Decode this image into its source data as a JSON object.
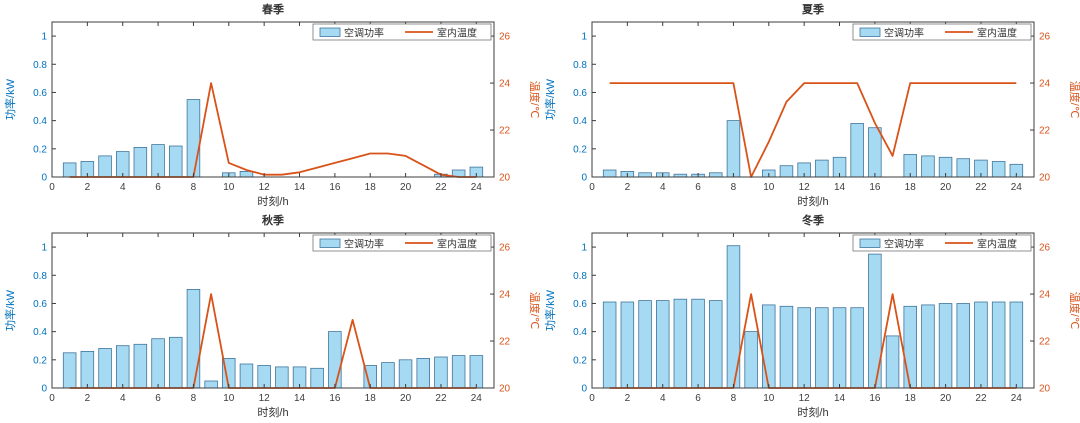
{
  "figure": {
    "title": "",
    "rows": 2,
    "cols": 2
  },
  "palette": {
    "bar_face": "#a6d9f2",
    "bar_edge": "#40759c",
    "line": "#d95319",
    "left_axis": "#0072bd",
    "right_axis": "#d95319",
    "axis_box": "#3c3c3c",
    "tick_text": "#3c3c3c",
    "title_text": "#333333",
    "legend_border": "#777777",
    "background": "#ffffff"
  },
  "chart_data": [
    {
      "type": "combo",
      "title": "春季",
      "xlabel": "时刻/h",
      "ylabel_left": "功率/kW",
      "ylabel_right": "温度/℃",
      "legend_position": "top-right-inside",
      "grid": false,
      "xlim": [
        0,
        25
      ],
      "xticks": [
        0,
        2,
        4,
        6,
        8,
        10,
        12,
        14,
        16,
        18,
        20,
        22,
        24
      ],
      "ylim_left": [
        0,
        1.1
      ],
      "yticks_left": [
        0,
        0.2,
        0.4,
        0.6,
        0.8,
        1
      ],
      "ylim_right": [
        20,
        26.6
      ],
      "yticks_right": [
        20,
        22,
        24,
        26
      ],
      "x": [
        1,
        2,
        3,
        4,
        5,
        6,
        7,
        8,
        9,
        10,
        11,
        12,
        13,
        14,
        15,
        16,
        17,
        18,
        19,
        20,
        21,
        22,
        23,
        24
      ],
      "series": [
        {
          "name": "空调功率",
          "type": "bar",
          "values": [
            0.1,
            0.11,
            0.15,
            0.18,
            0.21,
            0.23,
            0.22,
            0.55,
            0,
            0.03,
            0.04,
            0,
            0,
            0,
            0,
            0,
            0,
            0,
            0,
            0,
            0,
            0.02,
            0.05,
            0.07
          ]
        },
        {
          "name": "室内温度",
          "type": "line",
          "values": [
            20,
            20,
            20,
            20,
            20,
            20,
            20,
            20,
            24,
            20.6,
            20.3,
            20.1,
            20.1,
            20.2,
            20.4,
            20.6,
            20.8,
            21,
            21,
            20.9,
            20.5,
            20.1,
            20,
            20
          ]
        }
      ]
    },
    {
      "type": "combo",
      "title": "夏季",
      "xlabel": "时刻/h",
      "ylabel_left": "功率/kW",
      "ylabel_right": "温度/℃",
      "legend_position": "top-right-inside",
      "grid": false,
      "xlim": [
        0,
        25
      ],
      "xticks": [
        0,
        2,
        4,
        6,
        8,
        10,
        12,
        14,
        16,
        18,
        20,
        22,
        24
      ],
      "ylim_left": [
        0,
        1.1
      ],
      "yticks_left": [
        0,
        0.2,
        0.4,
        0.6,
        0.8,
        1
      ],
      "ylim_right": [
        20,
        26.6
      ],
      "yticks_right": [
        20,
        22,
        24,
        26
      ],
      "x": [
        1,
        2,
        3,
        4,
        5,
        6,
        7,
        8,
        9,
        10,
        11,
        12,
        13,
        14,
        15,
        16,
        17,
        18,
        19,
        20,
        21,
        22,
        23,
        24
      ],
      "series": [
        {
          "name": "空调功率",
          "type": "bar",
          "values": [
            0.05,
            0.04,
            0.03,
            0.03,
            0.02,
            0.02,
            0.03,
            0.4,
            0,
            0.05,
            0.08,
            0.1,
            0.12,
            0.14,
            0.38,
            0.35,
            0,
            0.16,
            0.15,
            0.14,
            0.13,
            0.12,
            0.11,
            0.09
          ]
        },
        {
          "name": "室内温度",
          "type": "line",
          "values": [
            24,
            24,
            24,
            24,
            24,
            24,
            24,
            24,
            20,
            21.5,
            23.2,
            24,
            24,
            24,
            24,
            22.3,
            20.9,
            24,
            24,
            24,
            24,
            24,
            24,
            24
          ]
        }
      ]
    },
    {
      "type": "combo",
      "title": "秋季",
      "xlabel": "时刻/h",
      "ylabel_left": "功率/kW",
      "ylabel_right": "温度/℃",
      "legend_position": "top-right-inside",
      "grid": false,
      "xlim": [
        0,
        25
      ],
      "xticks": [
        0,
        2,
        4,
        6,
        8,
        10,
        12,
        14,
        16,
        18,
        20,
        22,
        24
      ],
      "ylim_left": [
        0,
        1.1
      ],
      "yticks_left": [
        0,
        0.2,
        0.4,
        0.6,
        0.8,
        1
      ],
      "ylim_right": [
        20,
        26.6
      ],
      "yticks_right": [
        20,
        22,
        24,
        26
      ],
      "x": [
        1,
        2,
        3,
        4,
        5,
        6,
        7,
        8,
        9,
        10,
        11,
        12,
        13,
        14,
        15,
        16,
        17,
        18,
        19,
        20,
        21,
        22,
        23,
        24
      ],
      "series": [
        {
          "name": "空调功率",
          "type": "bar",
          "values": [
            0.25,
            0.26,
            0.28,
            0.3,
            0.31,
            0.35,
            0.36,
            0.7,
            0.05,
            0.21,
            0.17,
            0.16,
            0.15,
            0.15,
            0.14,
            0.4,
            0,
            0.16,
            0.18,
            0.2,
            0.21,
            0.22,
            0.23,
            0.23
          ]
        },
        {
          "name": "室内温度",
          "type": "line",
          "values": [
            20,
            20,
            20,
            20,
            20,
            20,
            20,
            20,
            24,
            20,
            20,
            20,
            20,
            20,
            20,
            20,
            22.9,
            20,
            20,
            20,
            20,
            20,
            20,
            20
          ]
        }
      ]
    },
    {
      "type": "combo",
      "title": "冬季",
      "xlabel": "时刻/h",
      "ylabel_left": "功率/kW",
      "ylabel_right": "温度/℃",
      "legend_position": "top-right-inside",
      "grid": false,
      "xlim": [
        0,
        25
      ],
      "xticks": [
        0,
        2,
        4,
        6,
        8,
        10,
        12,
        14,
        16,
        18,
        20,
        22,
        24
      ],
      "ylim_left": [
        0,
        1.1
      ],
      "yticks_left": [
        0,
        0.2,
        0.4,
        0.6,
        0.8,
        1
      ],
      "ylim_right": [
        20,
        26.6
      ],
      "yticks_right": [
        20,
        22,
        24,
        26
      ],
      "x": [
        1,
        2,
        3,
        4,
        5,
        6,
        7,
        8,
        9,
        10,
        11,
        12,
        13,
        14,
        15,
        16,
        17,
        18,
        19,
        20,
        21,
        22,
        23,
        24
      ],
      "series": [
        {
          "name": "空调功率",
          "type": "bar",
          "values": [
            0.61,
            0.61,
            0.62,
            0.62,
            0.63,
            0.63,
            0.62,
            1.01,
            0.4,
            0.59,
            0.58,
            0.57,
            0.57,
            0.57,
            0.57,
            0.95,
            0.37,
            0.58,
            0.59,
            0.6,
            0.6,
            0.61,
            0.61,
            0.61
          ]
        },
        {
          "name": "室内温度",
          "type": "line",
          "values": [
            20,
            20,
            20,
            20,
            20,
            20,
            20,
            20,
            24,
            20,
            20,
            20,
            20,
            20,
            20,
            20,
            24,
            20,
            20,
            20,
            20,
            20,
            20,
            20
          ]
        }
      ]
    }
  ]
}
